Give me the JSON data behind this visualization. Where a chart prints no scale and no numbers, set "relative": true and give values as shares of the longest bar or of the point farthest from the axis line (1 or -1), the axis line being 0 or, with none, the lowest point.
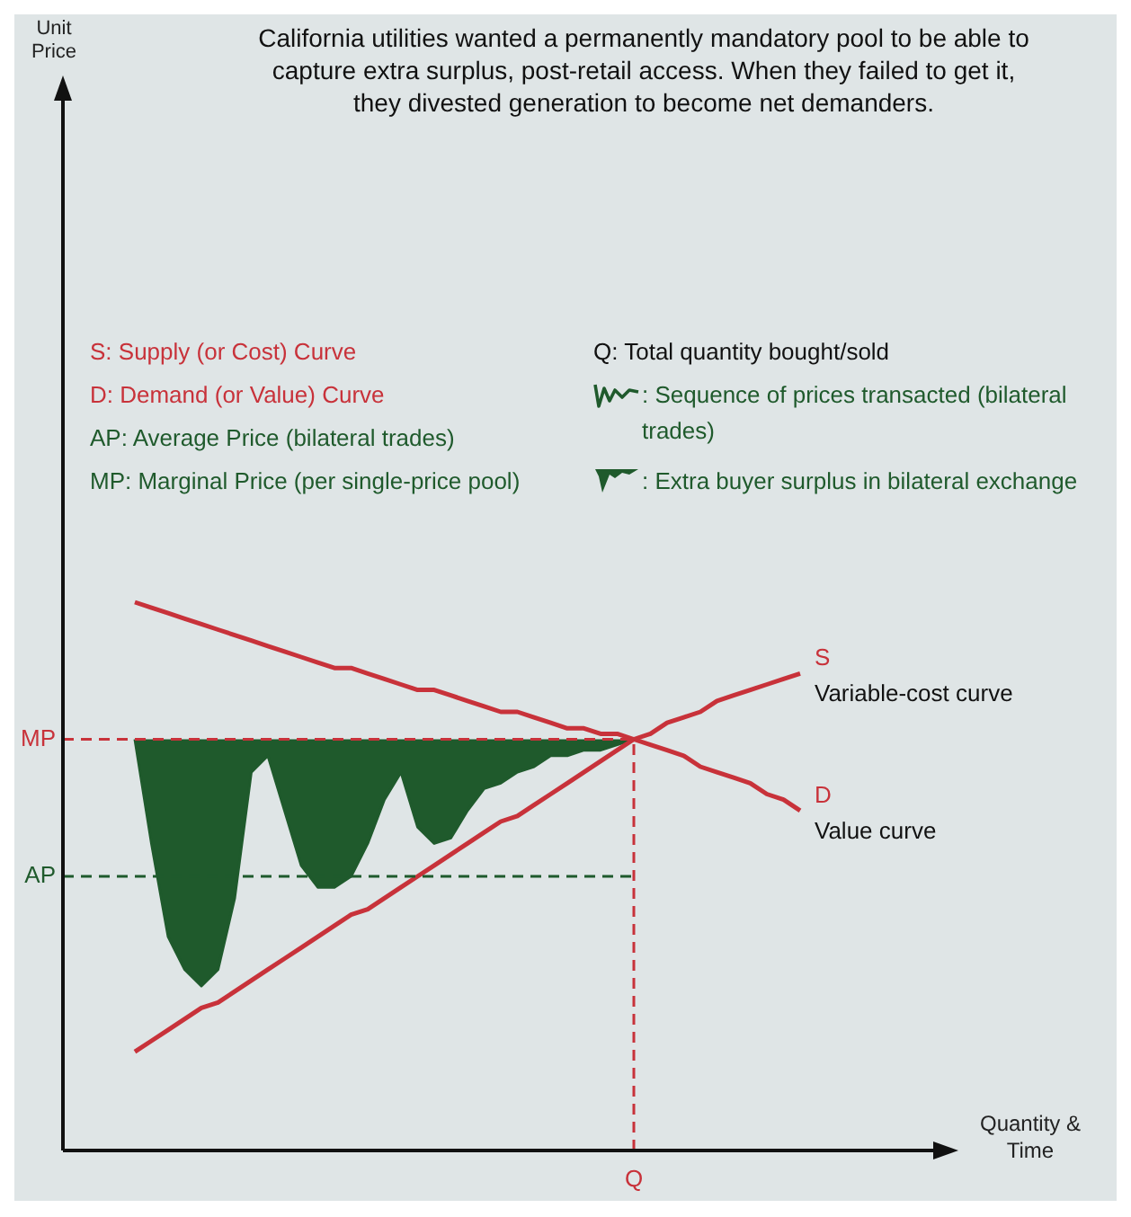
{
  "chart_data": {
    "type": "line",
    "relative": true,
    "title": "California utilities wanted a permanently mandatory pool to be able to capture extra surplus, post-retail access. When they failed to get it, they divested generation to become net demanders.",
    "categories": [
      null,
      null,
      null,
      null,
      null,
      null,
      null,
      null,
      null,
      null,
      null,
      null,
      null,
      null,
      null,
      null,
      null,
      null,
      null,
      null,
      null,
      null,
      null,
      null,
      null,
      null,
      null,
      null,
      null,
      null,
      null,
      null,
      null,
      null,
      null,
      null,
      null,
      null,
      null,
      null,
      null
    ],
    "series": [
      {
        "name": "S",
        "color": "#c8323a",
        "values": [
          0.18,
          0.2,
          0.22,
          0.24,
          0.26,
          0.27,
          0.29,
          0.31,
          0.33,
          0.35,
          0.37,
          0.39,
          0.41,
          0.43,
          0.44,
          0.46,
          0.48,
          0.5,
          0.52,
          0.54,
          0.56,
          0.58,
          0.6,
          0.61,
          0.63,
          0.65,
          0.67,
          0.69,
          0.71,
          0.73,
          0.75,
          0.76,
          0.78,
          0.79,
          0.8,
          0.82,
          0.83,
          0.84,
          0.85,
          0.86,
          0.87
        ]
      },
      {
        "name": "D",
        "color": "#c8323a",
        "values": [
          1.0,
          0.99,
          0.98,
          0.97,
          0.96,
          0.95,
          0.94,
          0.93,
          0.92,
          0.91,
          0.9,
          0.89,
          0.88,
          0.88,
          0.87,
          0.86,
          0.85,
          0.84,
          0.84,
          0.83,
          0.82,
          0.81,
          0.8,
          0.8,
          0.79,
          0.78,
          0.77,
          0.77,
          0.76,
          0.76,
          0.75,
          0.74,
          0.73,
          0.72,
          0.7,
          0.69,
          0.68,
          0.67,
          0.65,
          0.64,
          0.62
        ]
      },
      {
        "type": "area",
        "color": "#1f5a2c",
        "values": [
          0.75,
          0.56,
          0.39,
          0.33,
          0.3,
          0.33,
          0.46,
          0.69,
          0.72,
          0.62,
          0.52,
          0.48,
          0.48,
          0.5,
          0.56,
          0.64,
          0.69,
          0.59,
          0.56,
          0.57,
          0.62,
          0.66,
          0.67,
          0.69,
          0.7,
          0.72,
          0.72,
          0.73,
          0.73,
          0.74,
          0.75,
          null,
          null,
          null,
          null,
          null,
          null,
          null,
          null,
          null,
          null
        ]
      }
    ],
    "ref_lines": [
      {
        "axis": "y",
        "value": 0.75,
        "label": "MP",
        "color": "#c8323a",
        "line_style": "dashed"
      },
      {
        "axis": "y",
        "value": 0.5,
        "label": "AP",
        "color": "#1f5a2c",
        "line_style": "dashed"
      }
    ],
    "annotations": [
      "S: Supply (or Cost) Curve",
      "D: Demand (or Value) Curve",
      "AP: Average Price (bilateral trades)",
      "MP: Marginal Price (per single-price pool)",
      "Q: Total quantity bought/sold",
      ": Sequence of prices transacted (bilateral trades)",
      ": Extra buyer surplus in bilateral exchange",
      "Variable-cost curve",
      "Value curve",
      "Q",
      "Unit Price",
      "Quantity & Time"
    ],
    "legend": false,
    "marker": "none",
    "line_style": "solid"
  }
}
